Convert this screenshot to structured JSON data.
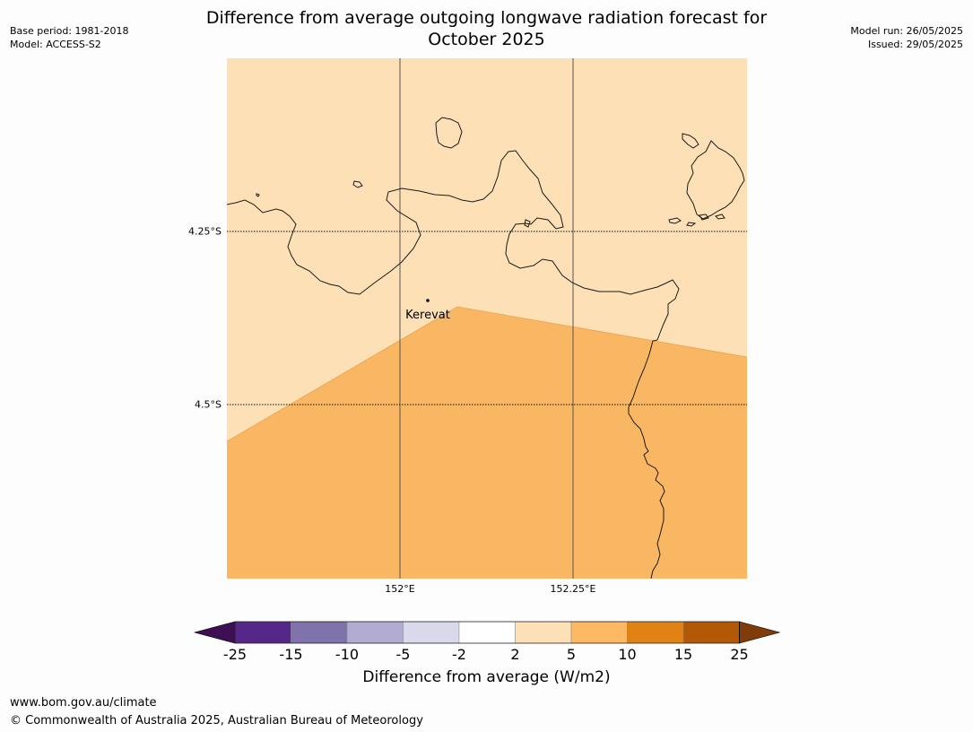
{
  "header": {
    "base_period": "Base period: 1981-2018",
    "model": "Model: ACCESS-S2",
    "title_line1": "Difference from average outgoing longwave radiation forecast for",
    "title_line2": "October 2025",
    "model_run": "Model run: 26/05/2025",
    "issued": "Issued: 29/05/2025"
  },
  "map": {
    "place_label": "Kerevat",
    "lat_labels": [
      "4.25°S",
      "4.5°S"
    ],
    "lon_labels": [
      "152°E",
      "152.25°E"
    ],
    "colors": {
      "light_region": "#fde0b6",
      "mid_region": "#f9b763",
      "coastline": "#1a1a1a",
      "gridline": "#555555"
    }
  },
  "colorbar": {
    "label": "Difference from average (W/m2)",
    "ticks": [
      "-25",
      "-15",
      "-10",
      "-5",
      "-2",
      "2",
      "5",
      "10",
      "15",
      "25"
    ],
    "colors": [
      "#3f0f54",
      "#542788",
      "#8073ac",
      "#b2abd2",
      "#d8daeb",
      "#ffffff",
      "#fee0b6",
      "#fdb863",
      "#e08214",
      "#b35806",
      "#7f3b08"
    ]
  },
  "footer": {
    "url": "www.bom.gov.au/climate",
    "copyright": "© Commonwealth of Australia 2025, Australian Bureau of Meteorology"
  }
}
